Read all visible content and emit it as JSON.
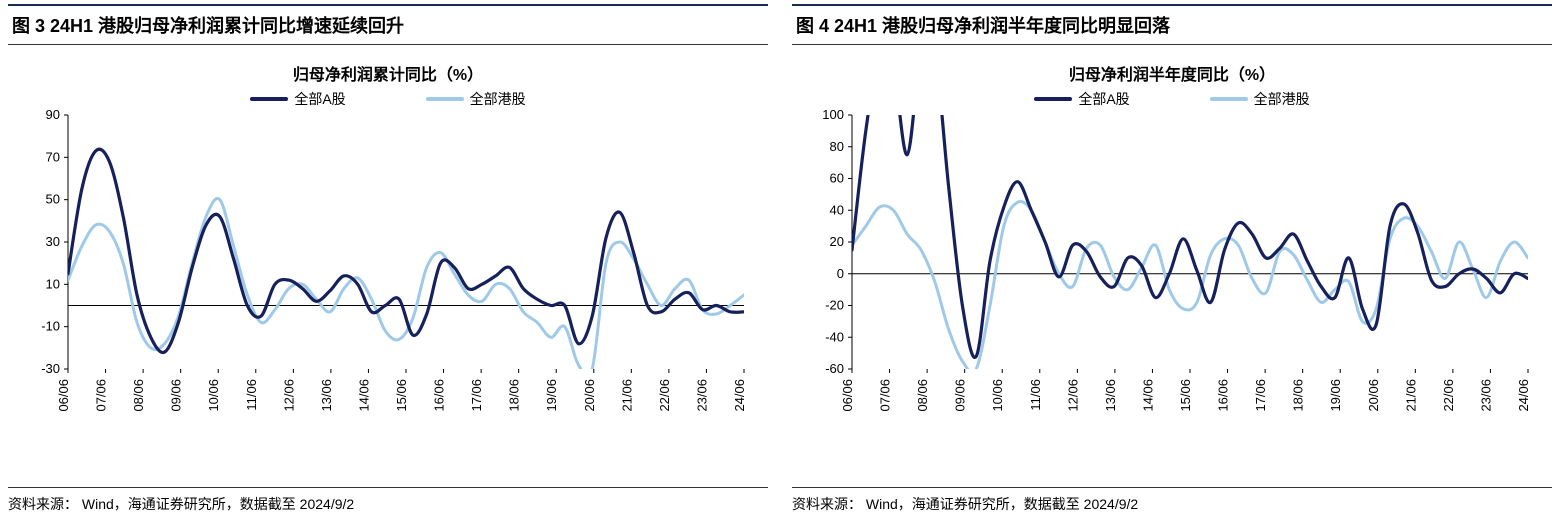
{
  "panels": [
    {
      "key": "left",
      "figure_label": "图 3 24H1 港股归母净利润累计同比增速延续回升",
      "chart_title": "归母净利润累计同比（%）",
      "source_text": "资料来源：  Wind，海通证券研究所，数据截至 2024/9/2",
      "type": "line",
      "background_color": "#ffffff",
      "axis_color": "#000000",
      "title_fontsize": 16,
      "label_fontsize": 13,
      "ylim": [
        -30,
        90
      ],
      "ytick_step": 20,
      "yticks": [
        -30,
        -10,
        10,
        30,
        50,
        70,
        90
      ],
      "x_labels": [
        "06/06",
        "07/06",
        "08/06",
        "09/06",
        "10/06",
        "11/06",
        "12/06",
        "13/06",
        "14/06",
        "15/06",
        "16/06",
        "17/06",
        "18/06",
        "19/06",
        "20/06",
        "21/06",
        "22/06",
        "23/06",
        "24/06"
      ],
      "x_label_rotation": -90,
      "line_width_a": 3.2,
      "line_width_b": 3.0,
      "legend": [
        {
          "label": "全部A股",
          "color": "#16215c"
        },
        {
          "label": "全部港股",
          "color": "#9fc9e8"
        }
      ],
      "series_a": {
        "name": "全部A股",
        "color": "#16215c",
        "values": [
          15,
          55,
          73,
          68,
          42,
          5,
          -15,
          -22,
          -8,
          18,
          38,
          42,
          22,
          0,
          -5,
          10,
          12,
          8,
          2,
          7,
          14,
          10,
          -3,
          0,
          3,
          -14,
          -4,
          20,
          18,
          8,
          10,
          14,
          18,
          8,
          3,
          0,
          0,
          -18,
          -5,
          32,
          44,
          25,
          0,
          -3,
          3,
          6,
          -2,
          0,
          -3,
          -3
        ]
      },
      "series_b": {
        "name": "全部港股",
        "color": "#9fc9e8",
        "values": [
          12,
          28,
          38,
          35,
          20,
          -8,
          -20,
          -18,
          -5,
          20,
          42,
          50,
          28,
          5,
          -8,
          -2,
          8,
          10,
          3,
          -3,
          8,
          13,
          3,
          -12,
          -16,
          -6,
          18,
          25,
          15,
          5,
          2,
          10,
          8,
          -3,
          -8,
          -15,
          -10,
          -28,
          -30,
          20,
          30,
          22,
          10,
          0,
          8,
          12,
          -2,
          -4,
          0,
          5
        ]
      }
    },
    {
      "key": "right",
      "figure_label": "图 4 24H1 港股归母净利润半年度同比明显回落",
      "chart_title": "归母净利润半年度同比（%）",
      "source_text": "资料来源：  Wind，海通证券研究所，数据截至 2024/9/2",
      "type": "line",
      "background_color": "#ffffff",
      "axis_color": "#000000",
      "title_fontsize": 16,
      "label_fontsize": 13,
      "ylim": [
        -60,
        100
      ],
      "ytick_step": 20,
      "yticks": [
        -60,
        -40,
        -20,
        0,
        20,
        40,
        60,
        80,
        100
      ],
      "x_labels": [
        "06/06",
        "07/06",
        "08/06",
        "09/06",
        "10/06",
        "11/06",
        "12/06",
        "13/06",
        "14/06",
        "15/06",
        "16/06",
        "17/06",
        "18/06",
        "19/06",
        "20/06",
        "21/06",
        "22/06",
        "23/06",
        "24/06"
      ],
      "x_label_rotation": -90,
      "line_width_a": 3.2,
      "line_width_b": 3.0,
      "legend": [
        {
          "label": "全部A股",
          "color": "#16215c"
        },
        {
          "label": "全部港股",
          "color": "#9fc9e8"
        }
      ],
      "series_a": {
        "name": "全部A股",
        "color": "#16215c",
        "values": [
          15,
          90,
          140,
          130,
          75,
          140,
          140,
          55,
          -20,
          -52,
          8,
          42,
          58,
          40,
          20,
          -2,
          18,
          14,
          -2,
          -8,
          10,
          5,
          -15,
          0,
          22,
          2,
          -18,
          15,
          32,
          25,
          10,
          16,
          25,
          8,
          -8,
          -15,
          10,
          -22,
          -32,
          30,
          44,
          26,
          -4,
          -8,
          0,
          3,
          -3,
          -12,
          0,
          -3
        ]
      },
      "series_b": {
        "name": "全部港股",
        "color": "#9fc9e8",
        "values": [
          18,
          30,
          42,
          40,
          25,
          15,
          -5,
          -35,
          -55,
          -60,
          -20,
          30,
          45,
          40,
          20,
          0,
          -8,
          16,
          18,
          -2,
          -10,
          4,
          18,
          -10,
          -22,
          -18,
          12,
          22,
          18,
          -3,
          -12,
          14,
          12,
          -4,
          -18,
          -10,
          -5,
          -30,
          -22,
          22,
          35,
          30,
          14,
          -3,
          20,
          3,
          -15,
          8,
          20,
          10
        ]
      }
    }
  ]
}
